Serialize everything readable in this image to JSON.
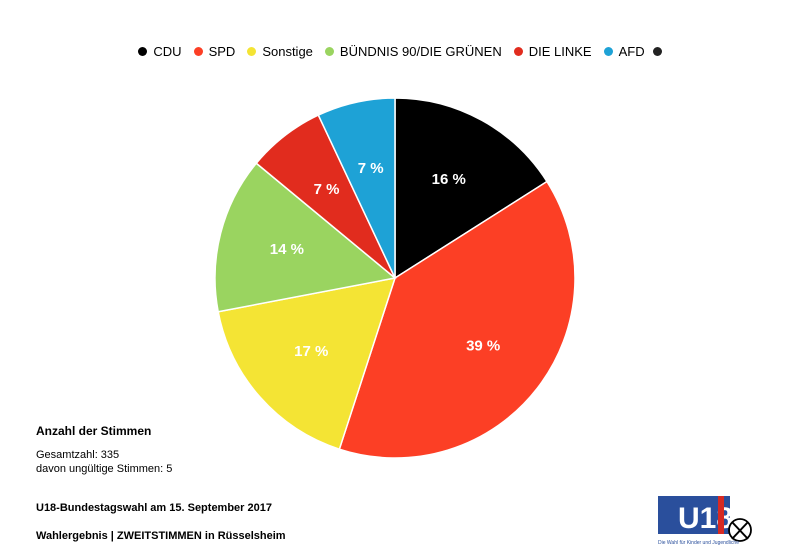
{
  "chart_data": {
    "type": "pie",
    "title": "",
    "legend_position": "top",
    "categories": [
      "CDU",
      "SPD",
      "Sonstige",
      "BÜNDNIS 90/DIE GRÜNEN",
      "DIE LINKE",
      "AFD"
    ],
    "values": [
      16,
      39,
      17,
      14,
      7,
      7
    ],
    "labels": [
      "16 %",
      "39 %",
      "17 %",
      "14 %",
      "7 %",
      "7 %"
    ],
    "colors": [
      "#000000",
      "#fc3f25",
      "#f4e434",
      "#9ad460",
      "#e12c1e",
      "#1ea2d6"
    ],
    "legend_trailing_dot_color": "#222222"
  },
  "votes": {
    "title": "Anzahl der Stimmen",
    "total": "Gesamtzahl: 335",
    "invalid": "davon ungültige Stimmen: 5"
  },
  "footer": {
    "line1": "U18-Bundestagswahl am 15. September 2017",
    "line2": "Wahlergebnis | ZWEITSTIMMEN in Rüsselsheim"
  },
  "logo": {
    "text": "U18",
    "tagline": "Die Wahl für Kinder und Jugendliche",
    "colors": {
      "blue": "#2a4f9c",
      "red": "#d62a23"
    }
  }
}
